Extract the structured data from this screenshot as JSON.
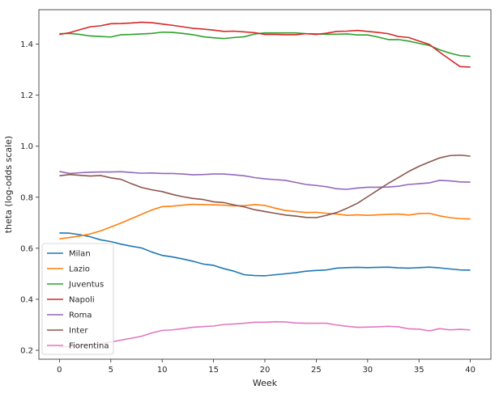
{
  "chart_data": {
    "type": "line",
    "xlabel": "Week",
    "ylabel": "theta (log-odds scale)",
    "xlim": [
      -2,
      42
    ],
    "ylim": [
      0.165,
      1.535
    ],
    "xticks": [
      0,
      5,
      10,
      15,
      20,
      25,
      30,
      35,
      40
    ],
    "yticks": [
      0.2,
      0.4,
      0.6,
      0.8,
      1.0,
      1.2,
      1.4
    ],
    "ytick_labels": [
      "0.2",
      "0.4",
      "0.6",
      "0.8",
      "1.0",
      "1.2",
      "1.4"
    ],
    "grid": false,
    "legend_position": "lower-left",
    "x": [
      0,
      1,
      2,
      3,
      4,
      5,
      6,
      7,
      8,
      9,
      10,
      11,
      12,
      13,
      14,
      15,
      16,
      17,
      18,
      19,
      20,
      21,
      22,
      23,
      24,
      25,
      26,
      27,
      28,
      29,
      30,
      31,
      32,
      33,
      34,
      35,
      36,
      37,
      38,
      39,
      40
    ],
    "series": [
      {
        "name": "Milan",
        "color": "#1f77b4",
        "values": [
          0.66,
          0.659,
          0.653,
          0.645,
          0.633,
          0.626,
          0.616,
          0.608,
          0.601,
          0.585,
          0.572,
          0.566,
          0.558,
          0.549,
          0.538,
          0.533,
          0.52,
          0.51,
          0.496,
          0.493,
          0.492,
          0.496,
          0.5,
          0.504,
          0.51,
          0.513,
          0.515,
          0.522,
          0.524,
          0.525,
          0.524,
          0.525,
          0.526,
          0.523,
          0.522,
          0.524,
          0.526,
          0.523,
          0.519,
          0.515,
          0.514
        ]
      },
      {
        "name": "Lazio",
        "color": "#ff7f0e",
        "values": [
          0.637,
          0.642,
          0.648,
          0.656,
          0.668,
          0.683,
          0.699,
          0.716,
          0.733,
          0.75,
          0.763,
          0.765,
          0.769,
          0.772,
          0.771,
          0.77,
          0.769,
          0.766,
          0.767,
          0.771,
          0.768,
          0.757,
          0.748,
          0.744,
          0.74,
          0.741,
          0.737,
          0.734,
          0.729,
          0.731,
          0.729,
          0.731,
          0.733,
          0.734,
          0.73,
          0.736,
          0.737,
          0.727,
          0.72,
          0.716,
          0.715
        ]
      },
      {
        "name": "Juventus",
        "color": "#2ca02c",
        "values": [
          1.441,
          1.442,
          1.438,
          1.432,
          1.43,
          1.428,
          1.437,
          1.438,
          1.44,
          1.442,
          1.447,
          1.446,
          1.442,
          1.437,
          1.429,
          1.425,
          1.422,
          1.426,
          1.429,
          1.44,
          1.444,
          1.444,
          1.444,
          1.444,
          1.441,
          1.44,
          1.439,
          1.439,
          1.44,
          1.436,
          1.436,
          1.428,
          1.418,
          1.418,
          1.412,
          1.403,
          1.395,
          1.378,
          1.365,
          1.355,
          1.352
        ]
      },
      {
        "name": "Napoli",
        "color": "#d62728",
        "values": [
          1.438,
          1.445,
          1.457,
          1.468,
          1.472,
          1.48,
          1.481,
          1.483,
          1.486,
          1.484,
          1.479,
          1.474,
          1.468,
          1.462,
          1.459,
          1.455,
          1.45,
          1.451,
          1.448,
          1.445,
          1.438,
          1.438,
          1.437,
          1.437,
          1.441,
          1.438,
          1.443,
          1.45,
          1.451,
          1.454,
          1.45,
          1.446,
          1.441,
          1.43,
          1.426,
          1.412,
          1.399,
          1.369,
          1.34,
          1.312,
          1.31
        ]
      },
      {
        "name": "Roma",
        "color": "#9467bd",
        "values": [
          0.901,
          0.893,
          0.896,
          0.898,
          0.899,
          0.899,
          0.9,
          0.897,
          0.894,
          0.895,
          0.893,
          0.893,
          0.891,
          0.888,
          0.889,
          0.891,
          0.891,
          0.888,
          0.884,
          0.877,
          0.872,
          0.869,
          0.866,
          0.858,
          0.85,
          0.846,
          0.841,
          0.833,
          0.831,
          0.836,
          0.839,
          0.839,
          0.84,
          0.843,
          0.85,
          0.853,
          0.856,
          0.866,
          0.864,
          0.86,
          0.859
        ]
      },
      {
        "name": "Inter",
        "color": "#8c564b",
        "values": [
          0.884,
          0.889,
          0.886,
          0.883,
          0.885,
          0.876,
          0.87,
          0.853,
          0.838,
          0.829,
          0.822,
          0.811,
          0.802,
          0.795,
          0.791,
          0.782,
          0.779,
          0.77,
          0.762,
          0.751,
          0.744,
          0.737,
          0.73,
          0.726,
          0.721,
          0.72,
          0.729,
          0.74,
          0.757,
          0.776,
          0.802,
          0.828,
          0.854,
          0.877,
          0.901,
          0.921,
          0.938,
          0.954,
          0.963,
          0.965,
          0.961
        ]
      },
      {
        "name": "Fiorentina",
        "color": "#e377c2",
        "values": [
          0.212,
          0.215,
          0.218,
          0.222,
          0.227,
          0.232,
          0.24,
          0.247,
          0.255,
          0.268,
          0.278,
          0.28,
          0.285,
          0.29,
          0.293,
          0.295,
          0.301,
          0.303,
          0.306,
          0.31,
          0.31,
          0.312,
          0.311,
          0.307,
          0.306,
          0.306,
          0.306,
          0.299,
          0.294,
          0.29,
          0.291,
          0.292,
          0.294,
          0.292,
          0.284,
          0.283,
          0.276,
          0.285,
          0.28,
          0.282,
          0.28
        ]
      }
    ]
  }
}
